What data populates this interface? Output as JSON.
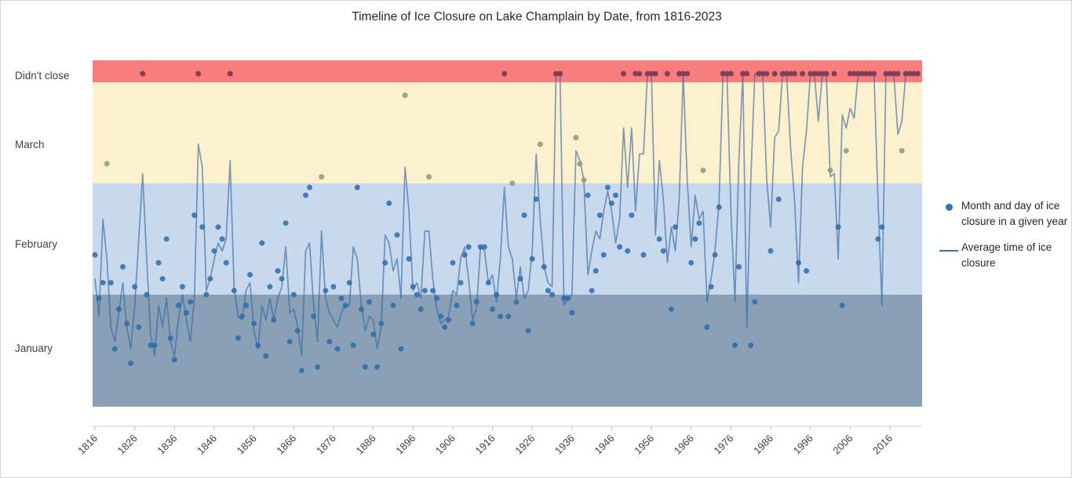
{
  "title": "Timeline of Ice Closure on Lake Champlain by Date, from 1816-2023",
  "legend": {
    "scatter_label": "Month and day of ice closure in a given year",
    "line_label": "Average time of ice closure"
  },
  "y_axis": {
    "labels": [
      "Didn't close",
      "March",
      "February",
      "January"
    ]
  },
  "x_axis": {
    "ticks": [
      1816,
      1826,
      1836,
      1846,
      1856,
      1866,
      1876,
      1886,
      1896,
      1906,
      1916,
      1926,
      1936,
      1946,
      1956,
      1966,
      1976,
      1986,
      1996,
      2006,
      2016
    ]
  },
  "bands": [
    {
      "name": "didnt-close",
      "color": "#f87e7e"
    },
    {
      "name": "march",
      "color": "#fbf1ce"
    },
    {
      "name": "february",
      "color": "#c8d9ed"
    },
    {
      "name": "january",
      "color": "#8aa0b6"
    }
  ],
  "colors": {
    "dot_normal": "#2e6ba8",
    "dot_march": "#8d9e85",
    "dot_didnt_close": "#7d3c55",
    "line": "#33639f",
    "legend_accent": "#2e75b6",
    "axis_line": "#d9d9d9",
    "tick_mark": "#bfbfbf",
    "tick_text": "#404040",
    "y_label_text": "#404040"
  },
  "chart_data": {
    "type": "scatter",
    "title": "Timeline of Ice Closure on Lake Champlain by Date, from 1816-2023",
    "x_range": [
      1816,
      2023
    ],
    "y_categories": [
      "January",
      "February",
      "March",
      "Didn't close"
    ],
    "day_scale_note": "days after Jan 1: 0=Jan 1, 31=Feb 1, 59=Mar 1, 90+=didn't close",
    "scatter": {
      "name": "Month and day of ice closure in a given year",
      "start_year": 1816,
      "values": [
        "Feb 11",
        "Jan 31",
        "Feb 4",
        "Mar 7",
        "Feb 4",
        "Jan 17",
        "Jan 28",
        "Feb 8",
        "Jan 24",
        "Jan 13",
        "Feb 3",
        "Jan 23",
        "DNC",
        "Feb 1",
        "Jan 18",
        "Jan 18",
        "Feb 9",
        "Feb 5",
        "Feb 15",
        "Jan 20",
        "Jan 14",
        "Jan 29",
        "Feb 3",
        "Jan 27",
        "Jan 30",
        "Feb 21",
        "DNC",
        "Feb 18",
        "Feb 1",
        "Feb 5",
        "Feb 12",
        "Feb 18",
        "Feb 15",
        "Feb 9",
        "DNC",
        "Feb 2",
        "Jan 20",
        "Jan 26",
        "Jan 29",
        "Feb 6",
        "Jan 24",
        "Jan 18",
        "Feb 14",
        "Jan 15",
        "Feb 3",
        "Jan 25",
        "Feb 7",
        "Feb 5",
        "Feb 19",
        "Jan 19",
        "Feb 1",
        "Jan 22",
        "Jan 11",
        "Feb 26",
        "Feb 28",
        "Jan 26",
        "Jan 12",
        "Mar 3",
        "Feb 2",
        "Jan 19",
        "Feb 3",
        "Jan 17",
        "Jan 31",
        "Jan 29",
        "Feb 4",
        "Jan 18",
        "Feb 28",
        "Jan 28",
        "Jan 12",
        "Jan 30",
        "Jan 21",
        "Jan 12",
        "Jan 24",
        "Feb 9",
        "Feb 24",
        "Jan 29",
        "Feb 16",
        "Jan 17",
        "Mar 28",
        "Feb 10",
        "Feb 3",
        "Feb 1",
        "Jan 28",
        "Feb 2",
        "Mar 3",
        "Feb 2",
        "Jan 31",
        "Jan 26",
        "Jan 23",
        "Jan 25",
        "Feb 9",
        "Jan 29",
        "Feb 4",
        "Feb 11",
        "Feb 13",
        "Jan 24",
        "Jan 30",
        "Feb 13",
        "Feb 13",
        "Feb 4",
        "Jan 28",
        "Feb 1",
        "Jan 26",
        "DNC",
        "Jan 26",
        "Mar 1",
        "Jan 30",
        "Feb 5",
        "Feb 21",
        "Jan 22",
        "Feb 10",
        "Feb 25",
        "Mar 13",
        "Feb 8",
        "Feb 2",
        "Feb 1",
        "DNC",
        "DNC",
        "Jan 31",
        "Jan 31",
        "Jan 27",
        "Mar 15",
        "Mar 7",
        "Mar 2",
        "Feb 26",
        "Feb 2",
        "Feb 7",
        "Feb 21",
        "Feb 11",
        "Feb 28",
        "Feb 24",
        "Feb 26",
        "Feb 13",
        "DNC",
        "Feb 12",
        "Feb 21",
        "DNC",
        "DNC",
        "Feb 11",
        "DNC",
        "DNC",
        "DNC",
        "Feb 15",
        "Feb 12",
        "DNC",
        "Jan 28",
        "Feb 18",
        "DNC",
        "DNC",
        "DNC",
        "Feb 9",
        "Feb 15",
        "Feb 19",
        "Mar 5",
        "Jan 23",
        "Feb 3",
        "Feb 11",
        "Feb 23",
        "DNC",
        "DNC",
        "DNC",
        "Jan 18",
        "Feb 8",
        "DNC",
        "DNC",
        "Jan 18",
        "Jan 30",
        "DNC",
        "DNC",
        "DNC",
        "Feb 12",
        "DNC",
        "Feb 25",
        "DNC",
        "DNC",
        "DNC",
        "DNC",
        "Feb 9",
        "DNC",
        "Feb 7",
        "DNC",
        "DNC",
        "DNC",
        "DNC",
        "DNC",
        "Mar 5",
        "DNC",
        "Feb 18",
        "Jan 29",
        "Mar 11",
        "DNC",
        "DNC",
        "DNC",
        "DNC",
        "DNC",
        "DNC",
        "DNC",
        "Feb 15",
        "Feb 18",
        "DNC",
        "DNC",
        "DNC",
        "DNC",
        "Mar 11",
        "DNC",
        "DNC",
        "DNC",
        "DNC"
      ]
    },
    "average_line": {
      "name": "Average time of ice closure",
      "start_year": 1816,
      "days": [
        35,
        25,
        50,
        40,
        22,
        18,
        26,
        34,
        22,
        16,
        28,
        45,
        62,
        40,
        20,
        14,
        28,
        22,
        30,
        18,
        14,
        24,
        31,
        24,
        18,
        30,
        71,
        64,
        32,
        35,
        40,
        44,
        42,
        45,
        66,
        33,
        25,
        24,
        32,
        34,
        21,
        16,
        28,
        24,
        30,
        24,
        30,
        33,
        43,
        26,
        27,
        22,
        14,
        42,
        44,
        28,
        18,
        47,
        30,
        26,
        24,
        22,
        26,
        28,
        28,
        43,
        40,
        28,
        21,
        25,
        24,
        16,
        22,
        46,
        44,
        37,
        40,
        30,
        64,
        52,
        32,
        34,
        30,
        47,
        47,
        35,
        27,
        23,
        24,
        25,
        32,
        31,
        40,
        43,
        35,
        24,
        27,
        43,
        42,
        34,
        36,
        29,
        40,
        58,
        43,
        40,
        30,
        38,
        30,
        32,
        42,
        68,
        50,
        38,
        34,
        33,
        91,
        91,
        28,
        30,
        31,
        69,
        66,
        60,
        36,
        42,
        47,
        45,
        52,
        57,
        52,
        44,
        50,
        76,
        58,
        76,
        52,
        68,
        68,
        91,
        91,
        46,
        66,
        55,
        39,
        48,
        42,
        55,
        91,
        60,
        43,
        56,
        50,
        52,
        29,
        35,
        42,
        54,
        91,
        91,
        52,
        29,
        66,
        91,
        22,
        60,
        91,
        91,
        91,
        60,
        48,
        73,
        75,
        91,
        91,
        70,
        55,
        34,
        64,
        75,
        91,
        91,
        78,
        91,
        91,
        61,
        62,
        40,
        80,
        76,
        82,
        79,
        91,
        91,
        91,
        91,
        91,
        55,
        28,
        91,
        91,
        91,
        74,
        78,
        91,
        91,
        91,
        91
      ]
    }
  }
}
